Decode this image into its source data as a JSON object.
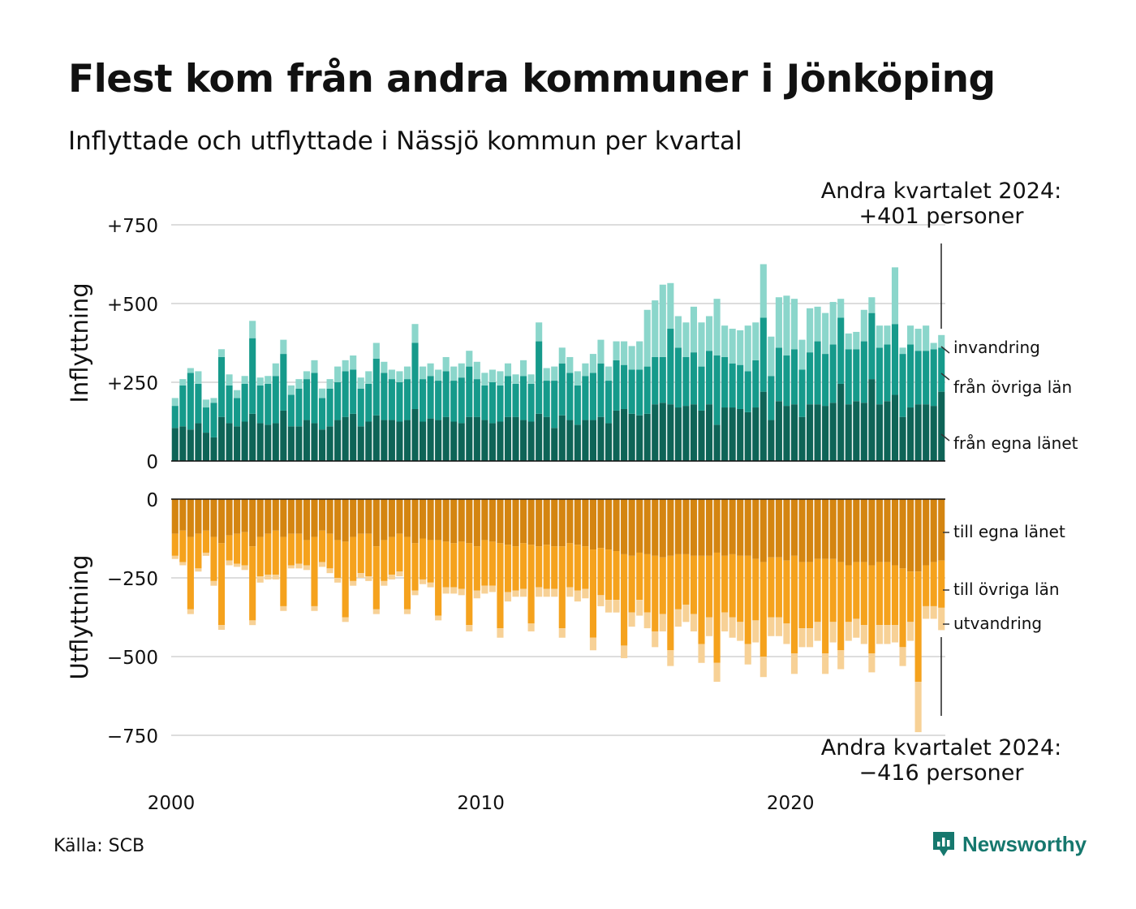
{
  "title": "Flest kom från andra kommuner i Jönköping",
  "subtitle": "Inflyttade och utflyttade i Nässjö kommun per kvartal",
  "source": "Källa: SCB",
  "brand": "Newsworthy",
  "colors": {
    "in_egna": "#0e6457",
    "in_ovriga": "#169a8b",
    "in_invandring": "#8bd6cb",
    "out_egna": "#d48511",
    "out_ovriga": "#f5a21d",
    "out_utvandring": "#f7d196",
    "grid": "#dddddd",
    "brand": "#16786e"
  },
  "chart_data": {
    "type": "bar",
    "stacked": true,
    "x_start": "2000 Q1",
    "x_end": "2024 Q2",
    "x_ticks": [
      "2000",
      "2010",
      "2020"
    ],
    "panels": [
      {
        "axis_label": "Inflyttning",
        "y_ticks": [
          "+750",
          "+500",
          "+250",
          "0"
        ],
        "ylim": [
          0,
          750
        ],
        "annotation": [
          "Andra kvartalet 2024:",
          "+401 personer"
        ],
        "series": [
          {
            "name": "från egna länet",
            "values": [
              105,
              110,
              100,
              120,
              90,
              75,
              140,
              120,
              110,
              125,
              150,
              120,
              115,
              120,
              160,
              110,
              110,
              130,
              120,
              100,
              110,
              130,
              140,
              150,
              110,
              125,
              145,
              130,
              130,
              125,
              130,
              165,
              125,
              135,
              130,
              140,
              125,
              120,
              140,
              140,
              130,
              120,
              125,
              140,
              140,
              130,
              125,
              150,
              140,
              105,
              145,
              130,
              115,
              130,
              130,
              140,
              120,
              160,
              165,
              150,
              145,
              150,
              180,
              185,
              180,
              170,
              175,
              180,
              160,
              180,
              115,
              170,
              170,
              165,
              155,
              170,
              220,
              130,
              190,
              175,
              180,
              140,
              180,
              180,
              175,
              185,
              245,
              180,
              190,
              185,
              260,
              180,
              190,
              210,
              140,
              170,
              180,
              180,
              175,
              220
            ]
          },
          {
            "name": "från övriga län",
            "values": [
              70,
              130,
              180,
              125,
              80,
              110,
              190,
              120,
              90,
              120,
              240,
              120,
              130,
              150,
              180,
              100,
              120,
              130,
              160,
              100,
              120,
              120,
              145,
              140,
              120,
              120,
              180,
              150,
              130,
              125,
              130,
              210,
              135,
              135,
              125,
              145,
              130,
              145,
              160,
              120,
              110,
              130,
              115,
              130,
              105,
              140,
              120,
              230,
              115,
              150,
              165,
              150,
              125,
              140,
              150,
              170,
              135,
              160,
              140,
              140,
              145,
              150,
              150,
              145,
              240,
              190,
              155,
              165,
              140,
              170,
              220,
              160,
              140,
              140,
              130,
              150,
              235,
              140,
              170,
              160,
              175,
              150,
              165,
              200,
              165,
              185,
              210,
              175,
              165,
              195,
              210,
              180,
              180,
              225,
              200,
              200,
              170,
              170,
              180,
              140
            ]
          },
          {
            "name": "invandring",
            "values": [
              25,
              20,
              15,
              40,
              25,
              15,
              25,
              35,
              25,
              25,
              55,
              25,
              25,
              40,
              45,
              30,
              30,
              25,
              40,
              30,
              30,
              50,
              35,
              45,
              35,
              40,
              50,
              35,
              30,
              35,
              40,
              60,
              40,
              40,
              35,
              45,
              45,
              45,
              50,
              55,
              40,
              40,
              45,
              40,
              30,
              50,
              30,
              60,
              40,
              45,
              50,
              50,
              45,
              40,
              60,
              75,
              45,
              60,
              75,
              75,
              90,
              180,
              180,
              230,
              145,
              100,
              110,
              145,
              140,
              110,
              180,
              100,
              110,
              110,
              145,
              120,
              170,
              125,
              160,
              190,
              160,
              95,
              140,
              110,
              130,
              135,
              60,
              50,
              55,
              100,
              50,
              70,
              60,
              180,
              20,
              60,
              70,
              80,
              20,
              40
            ]
          }
        ]
      },
      {
        "axis_label": "Utflyttning",
        "y_ticks": [
          "0",
          "−250",
          "−500",
          "−750"
        ],
        "ylim": [
          -750,
          0
        ],
        "annotation": [
          "Andra kvartalet 2024:",
          "−416 personer"
        ],
        "series": [
          {
            "name": "till egna länet",
            "values": [
              -110,
              -100,
              -120,
              -110,
              -100,
              -120,
              -140,
              -115,
              -110,
              -105,
              -150,
              -120,
              -110,
              -100,
              -120,
              -110,
              -110,
              -130,
              -120,
              -100,
              -110,
              -130,
              -135,
              -120,
              -110,
              -110,
              -150,
              -130,
              -120,
              -110,
              -120,
              -140,
              -125,
              -130,
              -130,
              -135,
              -140,
              -135,
              -140,
              -150,
              -130,
              -135,
              -140,
              -145,
              -150,
              -140,
              -145,
              -150,
              -145,
              -150,
              -150,
              -140,
              -145,
              -150,
              -160,
              -155,
              -160,
              -165,
              -175,
              -180,
              -170,
              -175,
              -180,
              -185,
              -180,
              -175,
              -175,
              -180,
              -180,
              -180,
              -170,
              -180,
              -175,
              -180,
              -180,
              -190,
              -200,
              -185,
              -185,
              -195,
              -180,
              -200,
              -200,
              -190,
              -190,
              -190,
              -200,
              -210,
              -200,
              -200,
              -210,
              -200,
              -200,
              -210,
              -220,
              -230,
              -230,
              -210,
              -200,
              -195
            ]
          },
          {
            "name": "till övriga län",
            "values": [
              -70,
              -100,
              -230,
              -110,
              -70,
              -140,
              -260,
              -80,
              -95,
              -105,
              -235,
              -125,
              -130,
              -140,
              -220,
              -100,
              -95,
              -80,
              -220,
              -100,
              -110,
              -120,
              -240,
              -140,
              -125,
              -135,
              -200,
              -130,
              -120,
              -120,
              -230,
              -150,
              -130,
              -135,
              -240,
              -145,
              -140,
              -150,
              -260,
              -140,
              -145,
              -140,
              -270,
              -150,
              -140,
              -145,
              -250,
              -130,
              -140,
              -135,
              -260,
              -140,
              -145,
              -135,
              -280,
              -150,
              -160,
              -155,
              -290,
              -180,
              -150,
              -185,
              -240,
              -180,
              -300,
              -175,
              -160,
              -185,
              -280,
              -195,
              -350,
              -180,
              -200,
              -210,
              -280,
              -195,
              -300,
              -190,
              -190,
              -200,
              -310,
              -210,
              -210,
              -200,
              -300,
              -200,
              -280,
              -180,
              -180,
              -200,
              -280,
              -200,
              -200,
              -190,
              -250,
              -160,
              -350,
              -130,
              -140,
              -150
            ]
          },
          {
            "name": "utvandring",
            "values": [
              -10,
              -10,
              -15,
              -10,
              -10,
              -15,
              -15,
              -15,
              -10,
              -15,
              -15,
              -20,
              -15,
              -15,
              -15,
              -10,
              -15,
              -15,
              -15,
              -15,
              -15,
              -15,
              -15,
              -15,
              -15,
              -15,
              -15,
              -15,
              -15,
              -15,
              -15,
              -15,
              -15,
              -15,
              -15,
              -20,
              -20,
              -20,
              -20,
              -25,
              -25,
              -20,
              -30,
              -30,
              -20,
              -25,
              -25,
              -30,
              -25,
              -25,
              -30,
              -30,
              -35,
              -30,
              -40,
              -35,
              -40,
              -40,
              -40,
              -45,
              -50,
              -50,
              -50,
              -55,
              -50,
              -55,
              -55,
              -55,
              -60,
              -60,
              -60,
              -60,
              -65,
              -60,
              -65,
              -70,
              -65,
              -60,
              -60,
              -65,
              -65,
              -60,
              -60,
              -60,
              -65,
              -65,
              -60,
              -60,
              -60,
              -60,
              -60,
              -60,
              -60,
              -55,
              -60,
              -60,
              -160,
              -40,
              -40,
              -71
            ]
          }
        ]
      }
    ]
  }
}
